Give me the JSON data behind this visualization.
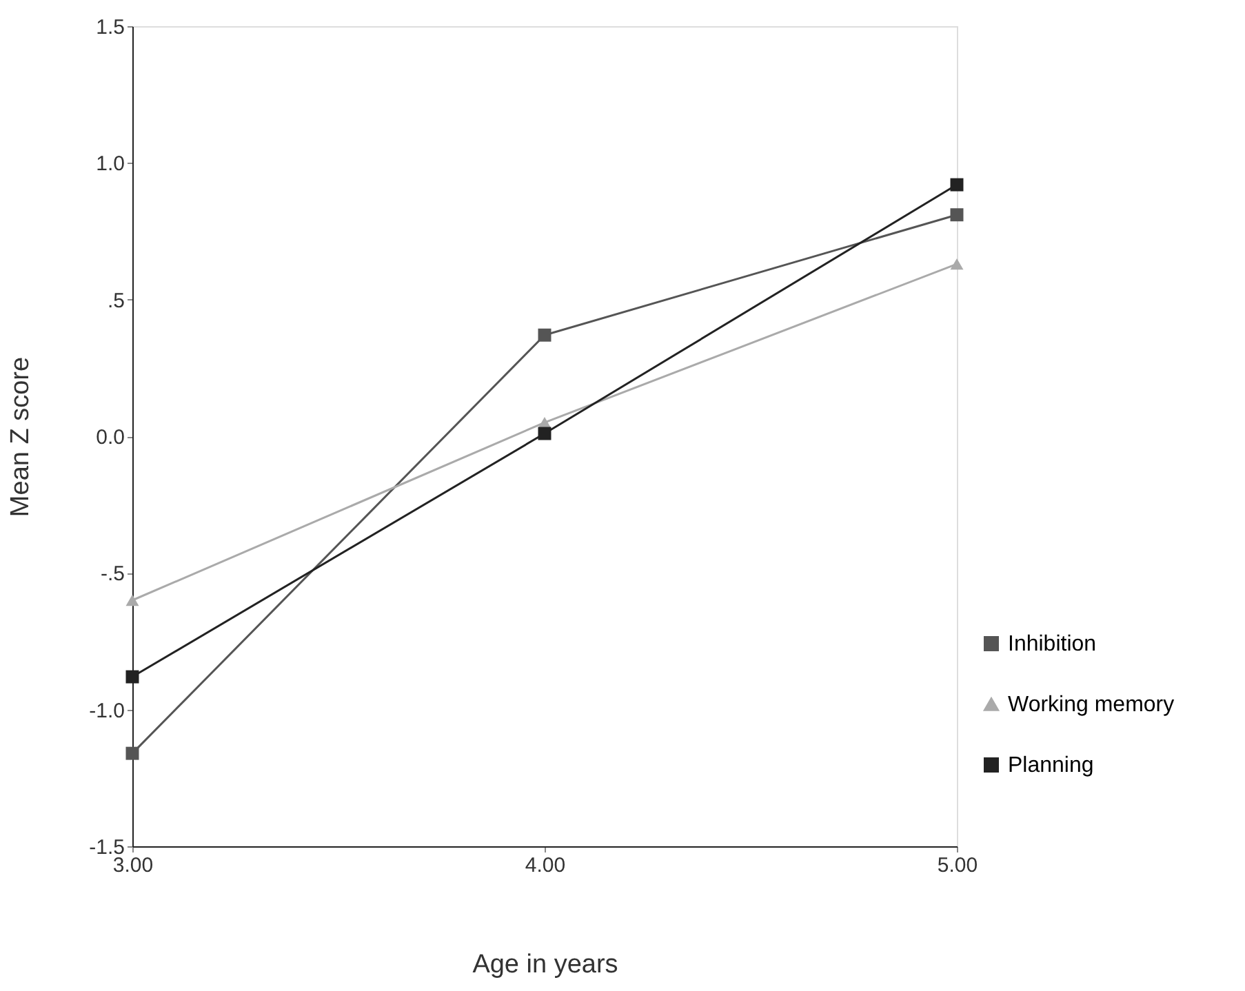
{
  "chart_data": {
    "type": "line",
    "xlabel": "Age in years",
    "ylabel": "Mean Z score",
    "x": [
      3,
      4,
      5
    ],
    "series": [
      {
        "name": "Inhibition",
        "color": "#555555",
        "marker": "square",
        "values": [
          -1.16,
          0.37,
          0.81
        ]
      },
      {
        "name": "Working memory",
        "color": "#aaaaaa",
        "marker": "triangle",
        "values": [
          -0.6,
          0.05,
          0.63
        ]
      },
      {
        "name": "Planning",
        "color": "#222222",
        "marker": "square",
        "values": [
          -0.88,
          0.01,
          0.92
        ]
      }
    ],
    "xlim": [
      3,
      5
    ],
    "xticks": [
      {
        "value": 3,
        "label": "3.00"
      },
      {
        "value": 4,
        "label": "4.00"
      },
      {
        "value": 5,
        "label": "5.00"
      }
    ],
    "ylim": [
      -1.5,
      1.5
    ],
    "yticks": [
      {
        "value": -1.5,
        "label": "-1.5"
      },
      {
        "value": -1,
        "label": "-1.0"
      },
      {
        "value": -0.5,
        "label": "-.5"
      },
      {
        "value": 0,
        "label": "0.0"
      },
      {
        "value": 0.5,
        "label": ".5"
      },
      {
        "value": 1,
        "label": "1.0"
      },
      {
        "value": 1.5,
        "label": "1.5"
      }
    ],
    "grid": false,
    "legend": "right",
    "line_style": "solid"
  }
}
